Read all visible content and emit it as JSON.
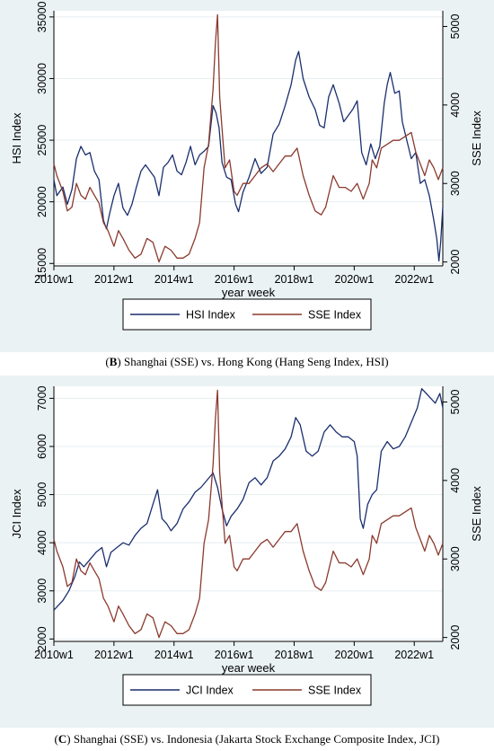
{
  "captions": [
    {
      "letter": "B",
      "rest": ") Shanghai (SSE) vs. Hong Kong (Hang Seng Index, HSI)"
    },
    {
      "letter": "C",
      "rest": ") Shanghai (SSE) vs. Indonesia (Jakarta Stock Exchange Composite Index, JCI)"
    }
  ],
  "chart_data": [
    {
      "type": "line",
      "xlabel": "year week",
      "ylabel_left": "HSI Index",
      "ylabel_right": "SSE Index",
      "x_ticks": [
        "2010w1",
        "2012w1",
        "2014w1",
        "2016w1",
        "2018w1",
        "2020w1",
        "2022w1"
      ],
      "x_range": [
        2010.0,
        2022.95
      ],
      "ylim_left": [
        14800,
        35500
      ],
      "ylim_right": [
        1950,
        5200
      ],
      "yticks_left": [
        15000,
        20000,
        25000,
        30000,
        35000
      ],
      "yticks_right": [
        2000,
        3000,
        4000,
        5000
      ],
      "grid": true,
      "legend_position": "bottom",
      "series": [
        {
          "name": "HSI Index",
          "axis": "left",
          "color": "#1a2f6e",
          "x": [
            2010.0,
            2010.1,
            2010.3,
            2010.45,
            2010.6,
            2010.75,
            2010.9,
            2011.05,
            2011.2,
            2011.35,
            2011.5,
            2011.65,
            2011.75,
            2011.85,
            2012.0,
            2012.15,
            2012.3,
            2012.45,
            2012.6,
            2012.75,
            2012.9,
            2013.05,
            2013.2,
            2013.35,
            2013.5,
            2013.65,
            2013.8,
            2013.95,
            2014.1,
            2014.25,
            2014.4,
            2014.55,
            2014.7,
            2014.85,
            2015.0,
            2015.15,
            2015.3,
            2015.4,
            2015.5,
            2015.6,
            2015.75,
            2015.9,
            2016.05,
            2016.15,
            2016.3,
            2016.5,
            2016.7,
            2016.9,
            2017.1,
            2017.3,
            2017.5,
            2017.7,
            2017.9,
            2018.05,
            2018.15,
            2018.3,
            2018.5,
            2018.7,
            2018.85,
            2019.0,
            2019.15,
            2019.3,
            2019.5,
            2019.65,
            2019.8,
            2019.95,
            2020.1,
            2020.25,
            2020.4,
            2020.55,
            2020.7,
            2020.85,
            2021.0,
            2021.1,
            2021.2,
            2021.35,
            2021.5,
            2021.6,
            2021.75,
            2021.9,
            2022.05,
            2022.2,
            2022.35,
            2022.5,
            2022.65,
            2022.75,
            2022.82,
            2022.88,
            2022.95
          ],
          "y": [
            21800,
            20500,
            21200,
            19800,
            21000,
            23500,
            24500,
            23800,
            24000,
            22500,
            21800,
            18500,
            17800,
            19000,
            20500,
            21500,
            19500,
            18900,
            19800,
            21200,
            22500,
            23000,
            22500,
            22000,
            20500,
            22800,
            23200,
            23800,
            22500,
            22200,
            23200,
            24500,
            23000,
            23800,
            24100,
            24500,
            27800,
            27200,
            26000,
            23200,
            22000,
            21800,
            19800,
            19200,
            20800,
            22000,
            23500,
            22300,
            22800,
            25500,
            26300,
            27800,
            29500,
            31500,
            32200,
            30000,
            28500,
            27500,
            26200,
            26000,
            28500,
            29500,
            28000,
            26500,
            27000,
            27500,
            28200,
            24000,
            23000,
            24700,
            23500,
            24500,
            28000,
            29500,
            30500,
            28800,
            29000,
            26500,
            25000,
            23500,
            24000,
            21500,
            21800,
            20500,
            18500,
            17000,
            15200,
            16800,
            19600
          ]
        },
        {
          "name": "SSE Index",
          "axis": "right",
          "color": "#8b3a2e",
          "x": [
            2010.0,
            2010.1,
            2010.3,
            2010.45,
            2010.6,
            2010.75,
            2010.9,
            2011.05,
            2011.2,
            2011.35,
            2011.5,
            2011.65,
            2011.8,
            2012.0,
            2012.15,
            2012.3,
            2012.5,
            2012.7,
            2012.9,
            2013.1,
            2013.3,
            2013.5,
            2013.7,
            2013.9,
            2014.1,
            2014.3,
            2014.5,
            2014.7,
            2014.85,
            2015.0,
            2015.15,
            2015.3,
            2015.38,
            2015.45,
            2015.52,
            2015.6,
            2015.7,
            2015.85,
            2016.0,
            2016.1,
            2016.3,
            2016.5,
            2016.7,
            2016.9,
            2017.1,
            2017.3,
            2017.5,
            2017.7,
            2017.9,
            2018.1,
            2018.3,
            2018.5,
            2018.7,
            2018.9,
            2019.05,
            2019.3,
            2019.5,
            2019.7,
            2019.9,
            2020.1,
            2020.3,
            2020.5,
            2020.6,
            2020.75,
            2020.9,
            2021.1,
            2021.3,
            2021.5,
            2021.7,
            2021.9,
            2022.05,
            2022.2,
            2022.35,
            2022.5,
            2022.65,
            2022.8,
            2022.95
          ],
          "y": [
            3250,
            3100,
            2900,
            2650,
            2700,
            3000,
            2850,
            2800,
            2950,
            2850,
            2750,
            2500,
            2400,
            2200,
            2400,
            2300,
            2150,
            2050,
            2100,
            2300,
            2250,
            2000,
            2200,
            2150,
            2050,
            2050,
            2100,
            2300,
            2500,
            3200,
            3500,
            4200,
            4800,
            5150,
            4100,
            3700,
            3200,
            3300,
            2900,
            2850,
            3000,
            3000,
            3100,
            3200,
            3250,
            3150,
            3250,
            3350,
            3350,
            3450,
            3100,
            2850,
            2650,
            2600,
            2700,
            3100,
            2950,
            2950,
            2900,
            3000,
            2800,
            3000,
            3300,
            3200,
            3450,
            3500,
            3550,
            3550,
            3600,
            3650,
            3400,
            3250,
            3100,
            3300,
            3200,
            3050,
            3200
          ]
        }
      ]
    },
    {
      "type": "line",
      "xlabel": "year week",
      "ylabel_left": "JCI Index",
      "ylabel_right": "SSE Index",
      "x_ticks": [
        "2010w1",
        "2012w1",
        "2014w1",
        "2016w1",
        "2018w1",
        "2020w1",
        "2022w1"
      ],
      "x_range": [
        2010.0,
        2022.95
      ],
      "ylim_left": [
        1950,
        7250
      ],
      "ylim_right": [
        1950,
        5200
      ],
      "yticks_left": [
        2000,
        3000,
        4000,
        5000,
        6000,
        7000
      ],
      "yticks_right": [
        2000,
        3000,
        4000,
        5000
      ],
      "grid": true,
      "legend_position": "bottom",
      "series": [
        {
          "name": "JCI Index",
          "axis": "left",
          "color": "#1a2f6e",
          "x": [
            2010.0,
            2010.15,
            2010.3,
            2010.5,
            2010.7,
            2010.85,
            2011.0,
            2011.2,
            2011.4,
            2011.6,
            2011.75,
            2011.9,
            2012.1,
            2012.3,
            2012.5,
            2012.7,
            2012.9,
            2013.1,
            2013.3,
            2013.45,
            2013.6,
            2013.75,
            2013.9,
            2014.1,
            2014.3,
            2014.5,
            2014.7,
            2014.9,
            2015.1,
            2015.3,
            2015.45,
            2015.6,
            2015.75,
            2015.9,
            2016.1,
            2016.3,
            2016.5,
            2016.7,
            2016.9,
            2017.1,
            2017.3,
            2017.5,
            2017.7,
            2017.9,
            2018.05,
            2018.2,
            2018.4,
            2018.6,
            2018.8,
            2019.0,
            2019.2,
            2019.4,
            2019.6,
            2019.8,
            2020.0,
            2020.1,
            2020.2,
            2020.3,
            2020.45,
            2020.6,
            2020.75,
            2020.9,
            2021.1,
            2021.3,
            2021.5,
            2021.7,
            2021.9,
            2022.1,
            2022.25,
            2022.4,
            2022.55,
            2022.7,
            2022.85,
            2022.95
          ],
          "y": [
            2600,
            2700,
            2800,
            3000,
            3300,
            3600,
            3500,
            3650,
            3800,
            3900,
            3500,
            3800,
            3900,
            4000,
            3950,
            4150,
            4300,
            4400,
            4800,
            5100,
            4500,
            4400,
            4250,
            4400,
            4700,
            4850,
            5050,
            5150,
            5300,
            5450,
            5150,
            4700,
            4350,
            4550,
            4700,
            4900,
            5250,
            5350,
            5200,
            5350,
            5700,
            5800,
            5950,
            6200,
            6600,
            6450,
            5900,
            5800,
            5900,
            6300,
            6450,
            6300,
            6200,
            6200,
            6100,
            5800,
            4500,
            4300,
            4800,
            5000,
            5100,
            5900,
            6100,
            5950,
            6000,
            6200,
            6500,
            6800,
            7200,
            7100,
            7000,
            6900,
            7100,
            6800
          ]
        },
        {
          "name": "SSE Index",
          "axis": "right",
          "color": "#8b3a2e",
          "x": [
            2010.0,
            2010.1,
            2010.3,
            2010.45,
            2010.6,
            2010.75,
            2010.9,
            2011.05,
            2011.2,
            2011.35,
            2011.5,
            2011.65,
            2011.8,
            2012.0,
            2012.15,
            2012.3,
            2012.5,
            2012.7,
            2012.9,
            2013.1,
            2013.3,
            2013.5,
            2013.7,
            2013.9,
            2014.1,
            2014.3,
            2014.5,
            2014.7,
            2014.85,
            2015.0,
            2015.15,
            2015.3,
            2015.38,
            2015.45,
            2015.52,
            2015.6,
            2015.7,
            2015.85,
            2016.0,
            2016.1,
            2016.3,
            2016.5,
            2016.7,
            2016.9,
            2017.1,
            2017.3,
            2017.5,
            2017.7,
            2017.9,
            2018.1,
            2018.3,
            2018.5,
            2018.7,
            2018.9,
            2019.05,
            2019.3,
            2019.5,
            2019.7,
            2019.9,
            2020.1,
            2020.3,
            2020.5,
            2020.6,
            2020.75,
            2020.9,
            2021.1,
            2021.3,
            2021.5,
            2021.7,
            2021.9,
            2022.05,
            2022.2,
            2022.35,
            2022.5,
            2022.65,
            2022.8,
            2022.95
          ],
          "y": [
            3250,
            3100,
            2900,
            2650,
            2700,
            3000,
            2850,
            2800,
            2950,
            2850,
            2750,
            2500,
            2400,
            2200,
            2400,
            2300,
            2150,
            2050,
            2100,
            2300,
            2250,
            2000,
            2200,
            2150,
            2050,
            2050,
            2100,
            2300,
            2500,
            3200,
            3500,
            4200,
            4800,
            5150,
            4100,
            3700,
            3200,
            3300,
            2900,
            2850,
            3000,
            3000,
            3100,
            3200,
            3250,
            3150,
            3250,
            3350,
            3350,
            3450,
            3100,
            2850,
            2650,
            2600,
            2700,
            3100,
            2950,
            2950,
            2900,
            3000,
            2800,
            3000,
            3300,
            3200,
            3450,
            3500,
            3550,
            3550,
            3600,
            3650,
            3400,
            3250,
            3100,
            3300,
            3200,
            3050,
            3200
          ]
        }
      ]
    }
  ]
}
